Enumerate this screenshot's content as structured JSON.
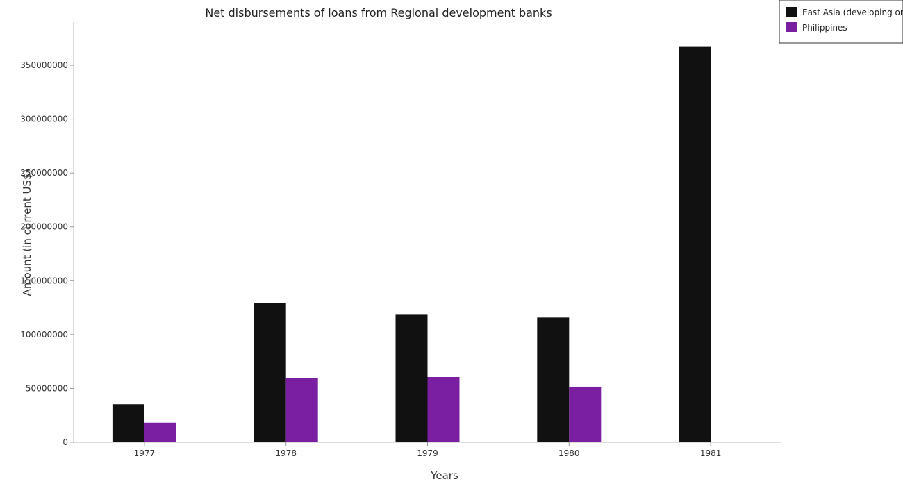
{
  "chart_data": {
    "type": "bar",
    "title": "Net disbursements of loans from Regional development banks",
    "xlabel": "Years",
    "ylabel": "Amount (in current US$)",
    "categories": [
      "1977",
      "1978",
      "1979",
      "1980",
      "1981"
    ],
    "series": [
      {
        "name": "East Asia (developing only)",
        "color": "#111111",
        "values": [
          35300000,
          129200000,
          119000000,
          115800000,
          367700000
        ]
      },
      {
        "name": "Philippines",
        "color": "#7a1fa2",
        "values": [
          18200000,
          59600000,
          60600000,
          51600000,
          600000
        ]
      }
    ],
    "yticks": [
      0,
      50000000,
      100000000,
      150000000,
      200000000,
      250000000,
      300000000,
      350000000
    ],
    "ytick_labels": [
      "0",
      "50000000",
      "100000000",
      "150000000",
      "200000000",
      "250000000",
      "300000000",
      "350000000"
    ],
    "ylim": [
      0,
      390000000
    ],
    "grid": false,
    "legend_position": "top-right"
  }
}
